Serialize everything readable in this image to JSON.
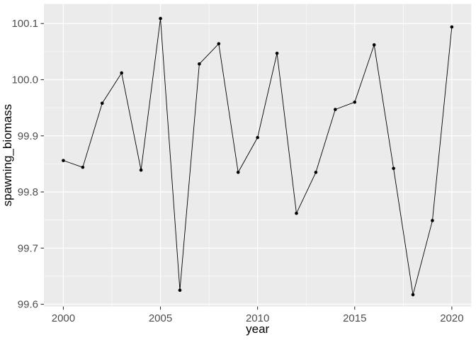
{
  "figure": {
    "panel_background": "#EBEBEB",
    "plot_background": "#FFFFFF",
    "gridline_color": "#FFFFFF",
    "tick_mark_color": "#333333",
    "tick_label_color": "#4D4D4D",
    "axis_title_color": "#000000",
    "line_color": "#000000",
    "point_color": "#000000"
  },
  "chart_data": {
    "type": "line",
    "title": "",
    "xlabel": "year",
    "ylabel": "spawning_biomass",
    "series_name": "spawning_biomass",
    "x": [
      2000,
      2001,
      2002,
      2003,
      2004,
      2005,
      2006,
      2007,
      2008,
      2009,
      2010,
      2011,
      2012,
      2013,
      2014,
      2015,
      2016,
      2017,
      2018,
      2019,
      2020
    ],
    "y": [
      99.856,
      99.844,
      99.958,
      100.012,
      99.839,
      100.109,
      99.625,
      100.028,
      100.064,
      99.835,
      99.897,
      100.047,
      99.762,
      99.835,
      99.947,
      99.96,
      100.062,
      99.842,
      99.617,
      99.749,
      100.094
    ],
    "x_ticks": {
      "values": [
        2000,
        2005,
        2010,
        2015,
        2020
      ],
      "labels": [
        "2000",
        "2005",
        "2010",
        "2015",
        "2020"
      ]
    },
    "y_ticks": {
      "values": [
        99.6,
        99.7,
        99.8,
        99.9,
        100.0,
        100.1
      ],
      "labels": [
        "99.6",
        "99.7",
        "99.8",
        "99.9",
        "100.0",
        "100.1"
      ]
    },
    "x_minor_breaks": [
      2002.5,
      2007.5,
      2012.5,
      2017.5
    ],
    "y_minor_breaks": [
      99.65,
      99.75,
      99.85,
      99.95,
      100.05
    ],
    "xlim": [
      1999,
      2021
    ],
    "ylim": [
      99.596,
      100.135
    ],
    "grid": true,
    "legend": "none",
    "markers": true,
    "theme": "ggplot-gray"
  }
}
